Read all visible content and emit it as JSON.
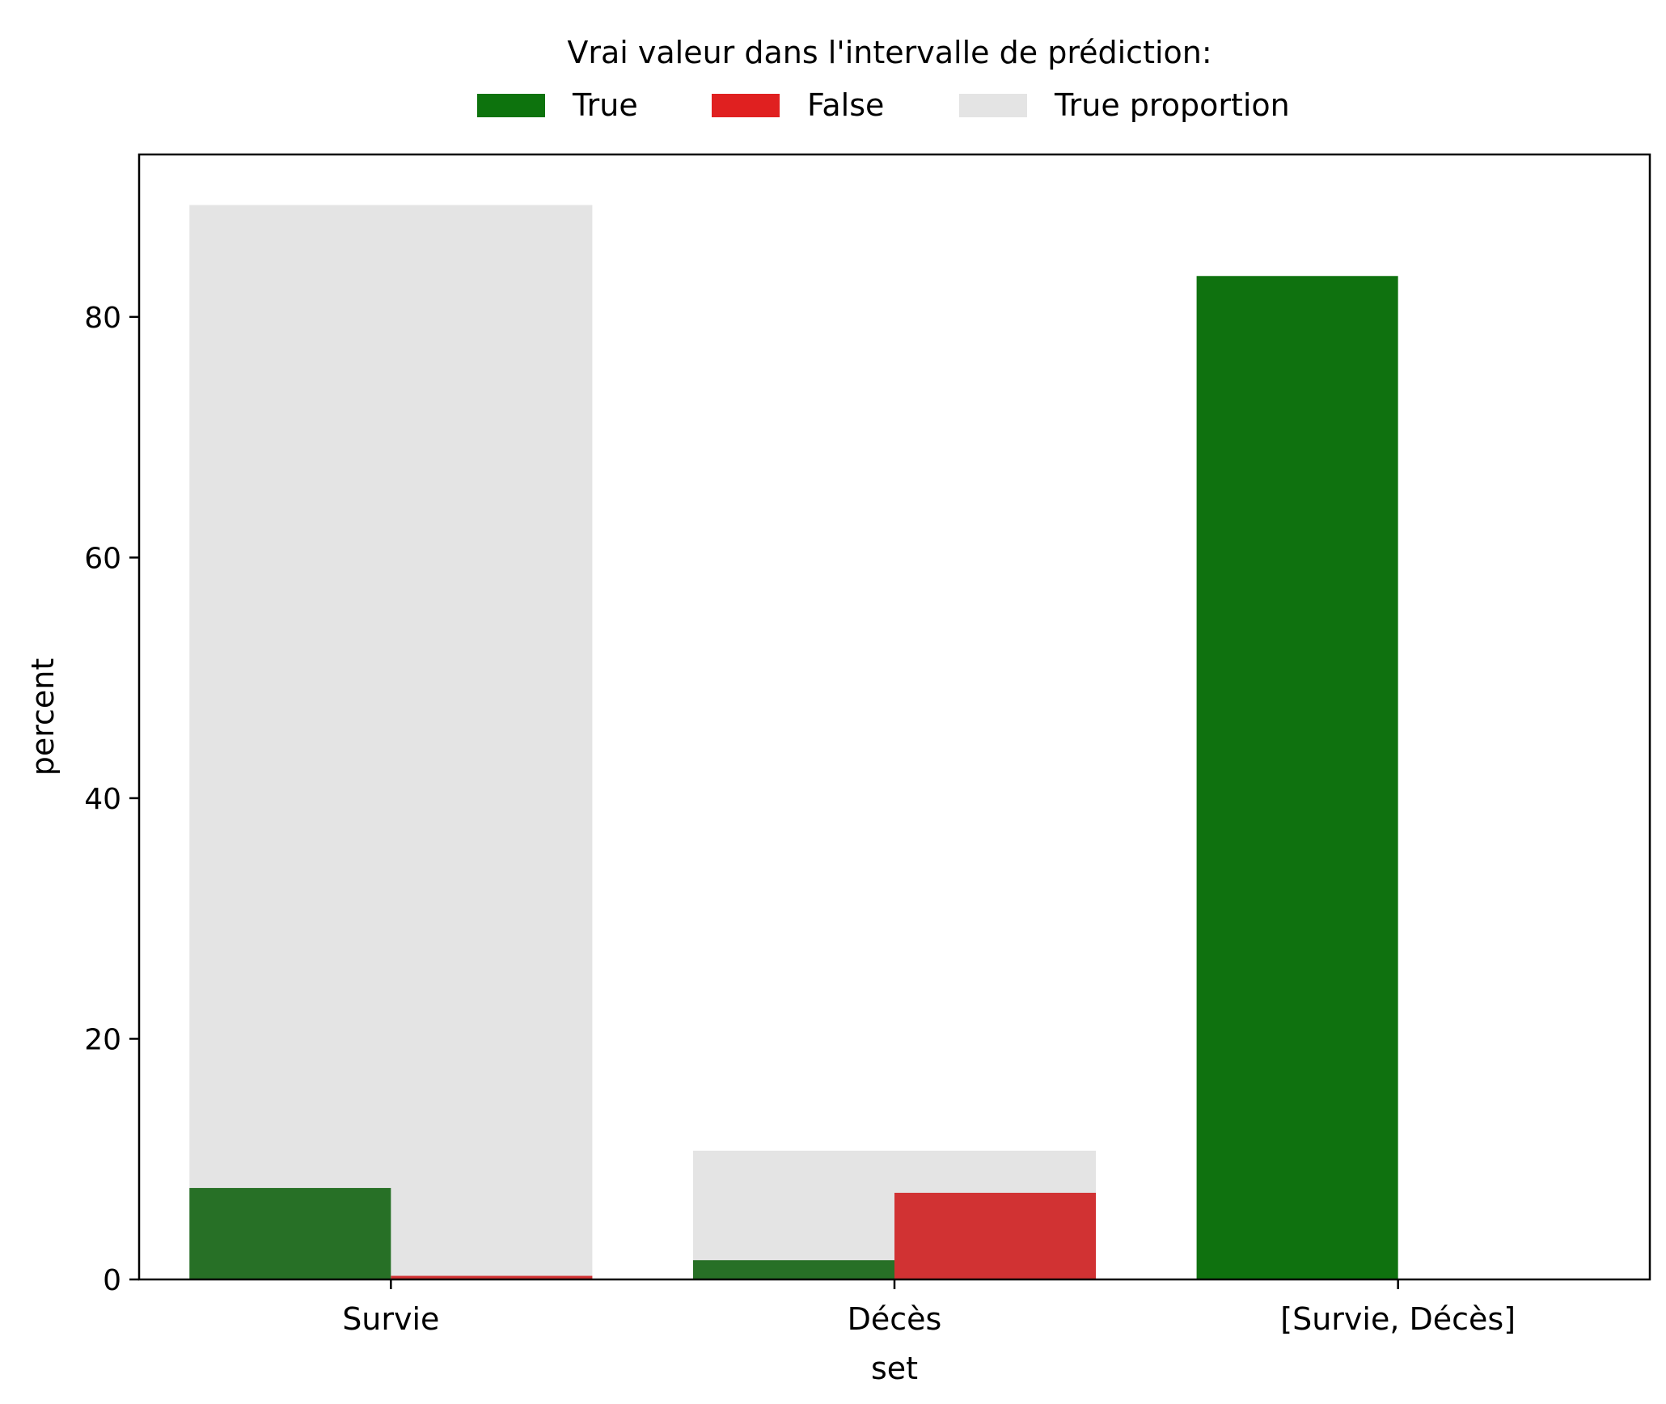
{
  "chart_data": {
    "type": "bar",
    "xlabel": "set",
    "ylabel": "percent",
    "categories": [
      "Survie",
      "Décès",
      "[Survie, Décès]"
    ],
    "ylim": [
      0,
      93.5
    ],
    "yticks": [
      0,
      20,
      40,
      60,
      80
    ],
    "grid": false,
    "legend": {
      "title": "Vrai valeur dans l'intervalle de prédiction:",
      "placement": "top-center, above plot",
      "entries": [
        {
          "label": "True",
          "color": "#0d730d"
        },
        {
          "label": "False",
          "color": "#e02020"
        },
        {
          "label": "True proportion",
          "color": "#e4e4e4"
        }
      ]
    },
    "background_series": {
      "name": "True proportion",
      "color": "#e4e4e4",
      "values": [
        89.3,
        10.7,
        0
      ]
    },
    "series": [
      {
        "name": "True",
        "colors": [
          "#277026",
          "#277026",
          "#0f720f"
        ],
        "values": [
          7.6,
          1.6,
          83.4
        ]
      },
      {
        "name": "False",
        "colors": [
          "#d13233",
          "#d13233",
          "#d13233"
        ],
        "values": [
          0.3,
          7.2,
          0
        ]
      }
    ]
  }
}
